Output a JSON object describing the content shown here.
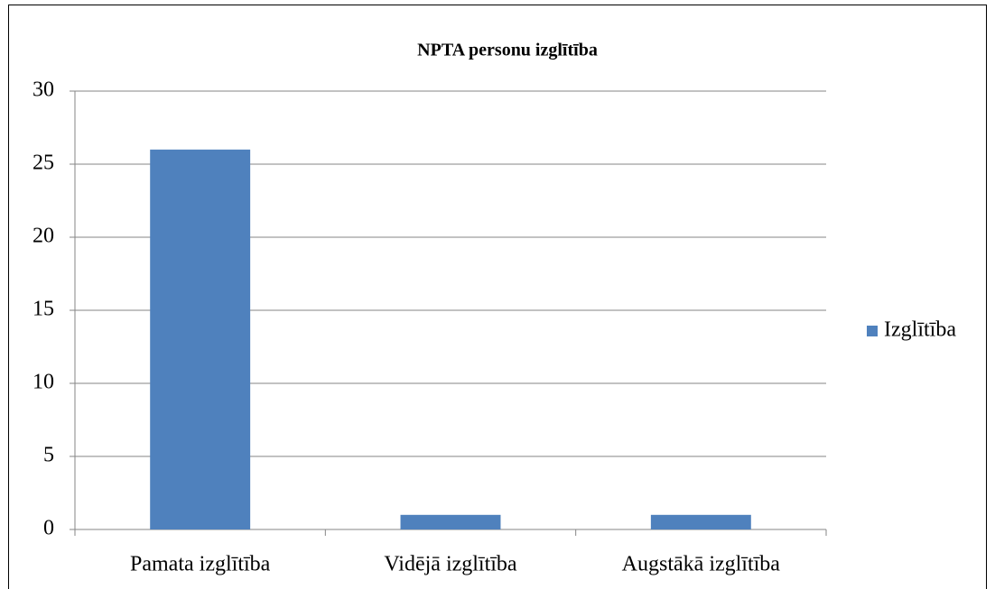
{
  "chart_data": {
    "type": "bar",
    "title": "NPTA personu izglītība",
    "categories": [
      "Pamata izglītība",
      "Vidējā izglītība",
      "Augstākā izglītība"
    ],
    "series": [
      {
        "name": "Izglītība",
        "color": "#4f81bd",
        "values": [
          26,
          1,
          1
        ]
      }
    ],
    "ylim": [
      0,
      30
    ],
    "yticks": [
      0,
      5,
      10,
      15,
      20,
      25,
      30
    ],
    "grid": true,
    "legend": "right"
  }
}
